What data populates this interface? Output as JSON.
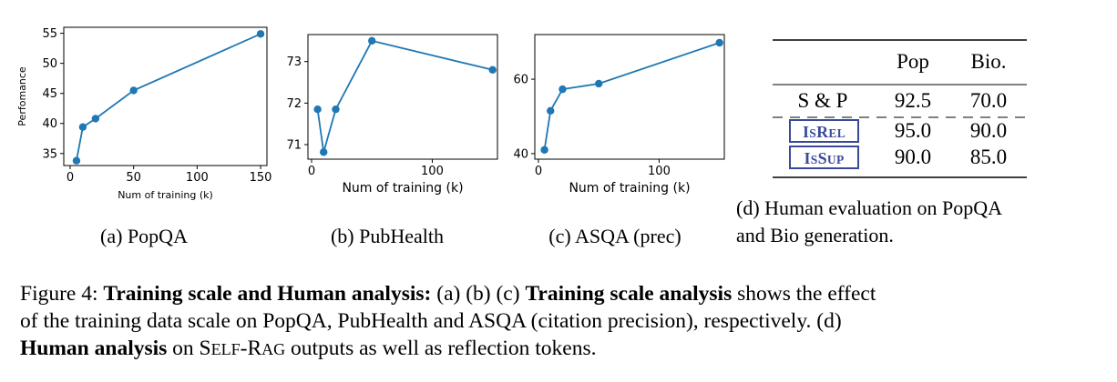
{
  "chart_data": [
    {
      "type": "line",
      "id": "a",
      "x": [
        5,
        10,
        20,
        50,
        150
      ],
      "values": [
        33.8,
        39.4,
        40.8,
        45.5,
        54.9
      ],
      "xlabel": "Num of training (k)",
      "ylabel": "Perfomance",
      "xlim": [
        -5,
        155
      ],
      "ylim": [
        33,
        56
      ],
      "xticks": [
        0,
        50,
        100,
        150
      ],
      "yticks": [
        35,
        40,
        45,
        50,
        55
      ],
      "subcaption": "(a) PopQA",
      "color": "#1f77b4"
    },
    {
      "type": "line",
      "id": "b",
      "x": [
        5,
        10,
        20,
        50,
        150
      ],
      "values": [
        71.85,
        70.82,
        71.85,
        73.5,
        72.8
      ],
      "xlabel": "Num of training (k)",
      "ylabel": "",
      "xlim": [
        -3,
        154
      ],
      "ylim": [
        70.65,
        73.65
      ],
      "xticks": [
        0,
        100
      ],
      "yticks": [
        71,
        72,
        73
      ],
      "subcaption": "(b) PubHealth",
      "color": "#1f77b4"
    },
    {
      "type": "line",
      "id": "c",
      "x": [
        5,
        10,
        20,
        50,
        150
      ],
      "values": [
        41,
        51.5,
        57.3,
        58.8,
        69.8
      ],
      "xlabel": "Num of training (k)",
      "ylabel": "",
      "xlim": [
        -3,
        154
      ],
      "ylim": [
        38.5,
        72
      ],
      "xticks": [
        0,
        100
      ],
      "yticks": [
        40,
        60
      ],
      "subcaption": "(c) ASQA (prec)",
      "color": "#1f77b4"
    },
    {
      "type": "table",
      "id": "d",
      "columns": [
        "",
        "Pop",
        "Bio."
      ],
      "rows": [
        {
          "label": "S & P",
          "values": [
            "92.5",
            "70.0"
          ]
        },
        {
          "label": "ISREL",
          "label_token": {
            "big1": "I",
            "small1": "S",
            "big2": "R",
            "small2": "EL"
          },
          "values": [
            "95.0",
            "90.0"
          ]
        },
        {
          "label": "ISSUP",
          "label_token": {
            "big1": "I",
            "small1": "S",
            "big2": "S",
            "small2": "UP"
          },
          "values": [
            "90.0",
            "85.0"
          ]
        }
      ],
      "subcaption_line1": "(d) Human evaluation on PopQA",
      "subcaption_line2": "and Bio generation.",
      "token_color": "#3a4a9a"
    }
  ],
  "caption": {
    "fig_label": "Figure 4: ",
    "bold1": "Training scale and Human analysis:",
    "t1": " (a) (b) (c) ",
    "bold2": "Training scale analysis",
    "t2": " shows the effect",
    "line2": "of the training data scale on PopQA, PubHealth and ASQA (citation precision), respectively. (d)",
    "bold3": "Human analysis",
    "t3": " on ",
    "sc_s": "S",
    "sc_elf": "ELF",
    "sc_dash": "-R",
    "sc_ag": "AG",
    "t4": " outputs as well as reflection tokens."
  }
}
